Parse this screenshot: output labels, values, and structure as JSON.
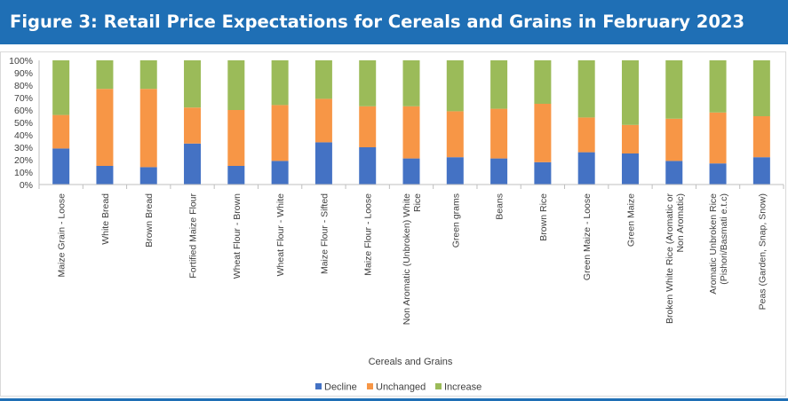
{
  "figure": {
    "title": "Figure  3: Retail Price Expectations for Cereals and Grains in February 2023"
  },
  "chart_data": {
    "type": "bar",
    "stacked": true,
    "normalized_percent": true,
    "title": "",
    "xlabel": "Cereals and Grains",
    "ylabel": "",
    "ylim": [
      0,
      100
    ],
    "yticks": [
      "0%",
      "10%",
      "20%",
      "30%",
      "40%",
      "50%",
      "60%",
      "70%",
      "80%",
      "90%",
      "100%"
    ],
    "grid": false,
    "legend_position": "bottom",
    "categories": [
      "Maize Grain - Loose",
      "White Bread",
      "Brown Bread",
      "Fortified Maize Flour",
      "Wheat Flour - Brown",
      "Wheat Flour - White",
      "Maize Flour - Sifted",
      "Maize Flour - Loose",
      "Non Aromatic (Unbroken) White Rice",
      "Green grams",
      "Beans",
      "Brown Rice",
      "Green Maize - Loose",
      "Green Maize",
      "Broken White Rice (Aromatic or Non Aromatic)",
      "Aromatic Unbroken Rice (Pishori/Basmati e.t.c)",
      "Peas (Garden, Snap, Snow)"
    ],
    "category_lines": [
      [
        "Maize Grain - Loose"
      ],
      [
        "White Bread"
      ],
      [
        "Brown Bread"
      ],
      [
        "Fortified Maize Flour"
      ],
      [
        "Wheat Flour - Brown"
      ],
      [
        "Wheat Flour - White"
      ],
      [
        "Maize Flour - Sifted"
      ],
      [
        "Maize Flour - Loose"
      ],
      [
        "Non Aromatic (Unbroken) White",
        "Rice"
      ],
      [
        "Green grams"
      ],
      [
        "Beans"
      ],
      [
        "Brown Rice"
      ],
      [
        "Green Maize - Loose"
      ],
      [
        "Green Maize"
      ],
      [
        "Broken White Rice (Aromatic or",
        "Non Aromatic)"
      ],
      [
        "Aromatic Unbroken Rice",
        "(Pishori/Basmati e.t.c)"
      ],
      [
        "Peas (Garden, Snap, Snow)"
      ]
    ],
    "series": [
      {
        "name": "Decline",
        "color": "#4472c4",
        "values": [
          29,
          15,
          14,
          33,
          15,
          19,
          34,
          30,
          21,
          22,
          21,
          18,
          26,
          25,
          19,
          17,
          22
        ]
      },
      {
        "name": "Unchanged",
        "color": "#f79646",
        "values": [
          27,
          62,
          63,
          29,
          45,
          45,
          35,
          33,
          42,
          37,
          40,
          47,
          28,
          23,
          34,
          41,
          33
        ]
      },
      {
        "name": "Increase",
        "color": "#9bbb59",
        "values": [
          44,
          23,
          23,
          38,
          40,
          36,
          31,
          37,
          37,
          41,
          39,
          35,
          46,
          52,
          47,
          42,
          45
        ]
      }
    ]
  }
}
